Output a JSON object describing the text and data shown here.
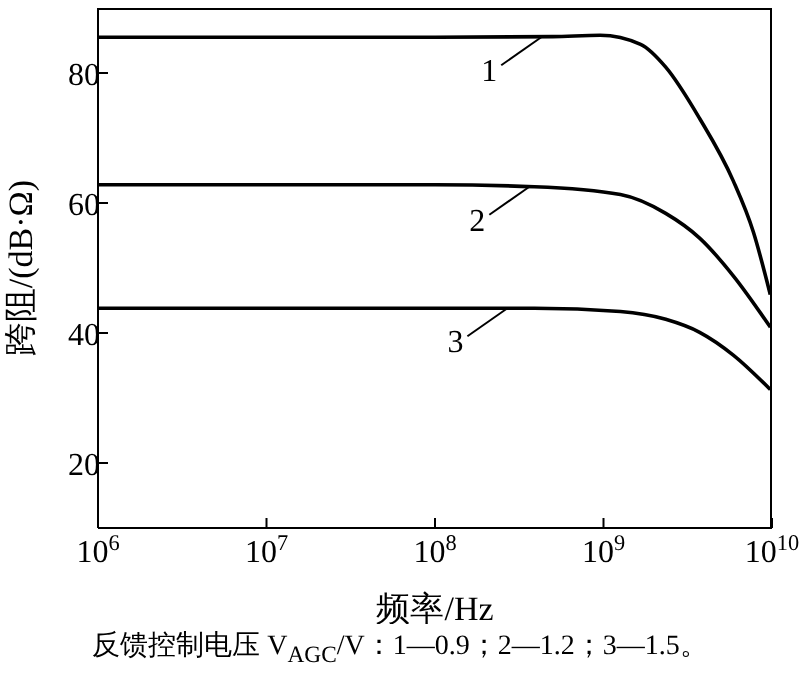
{
  "chart_data": {
    "type": "line",
    "xlabel": "频率/Hz",
    "ylabel": "跨阻/(dB·Ω)",
    "log": "x",
    "marker": "none",
    "line_style": "solid",
    "xlim": [
      1000000,
      10000000000
    ],
    "ylim": [
      10,
      90
    ],
    "xticks": [
      {
        "value": 1000000,
        "label": "10$^{6}$"
      },
      {
        "value": 10000000,
        "label": "10$^{7}$"
      },
      {
        "value": 100000000,
        "label": "10$^{8}$"
      },
      {
        "value": 1000000000,
        "label": "10$^{9}$"
      },
      {
        "value": 10000000000,
        "label": "10$^{10}$"
      }
    ],
    "yticks": [
      20,
      40,
      60,
      80
    ],
    "series": [
      {
        "color": "#000000",
        "x": [
          1000000,
          100000000,
          500000000,
          955000000,
          1660000000,
          2340000000,
          3720000000,
          5890000000,
          7760000000,
          9770000000
        ],
        "values": [
          85.5,
          85.5,
          85.6,
          85.8,
          84.4,
          80.9,
          73.0,
          63.4,
          55.5,
          45.9
        ]
      },
      {
        "color": "#000000",
        "x": [
          1000000,
          100000000,
          389000000,
          1260000000,
          2340000000,
          3720000000,
          5890000000,
          9770000000
        ],
        "values": [
          62.8,
          62.8,
          62.5,
          61.3,
          58.4,
          54.6,
          48.8,
          40.9
        ]
      },
      {
        "color": "#000000",
        "x": [
          1000000,
          100000000,
          389000000,
          1260000000,
          2340000000,
          3720000000,
          5890000000,
          9770000000
        ],
        "values": [
          43.8,
          43.8,
          43.8,
          43.3,
          42.1,
          40.1,
          36.6,
          31.3
        ]
      }
    ],
    "annotations": [
      {
        "text": "1",
        "x": 427000000,
        "y": 85.5
      },
      {
        "text": "2",
        "x": 363000000,
        "y": 62.5
      },
      {
        "text": "3",
        "x": 269000000,
        "y": 43.8
      },
      "反馈控制电压 V$_{AGC}$/V：1—0.9；2—1.2；3—1.5。"
    ]
  }
}
